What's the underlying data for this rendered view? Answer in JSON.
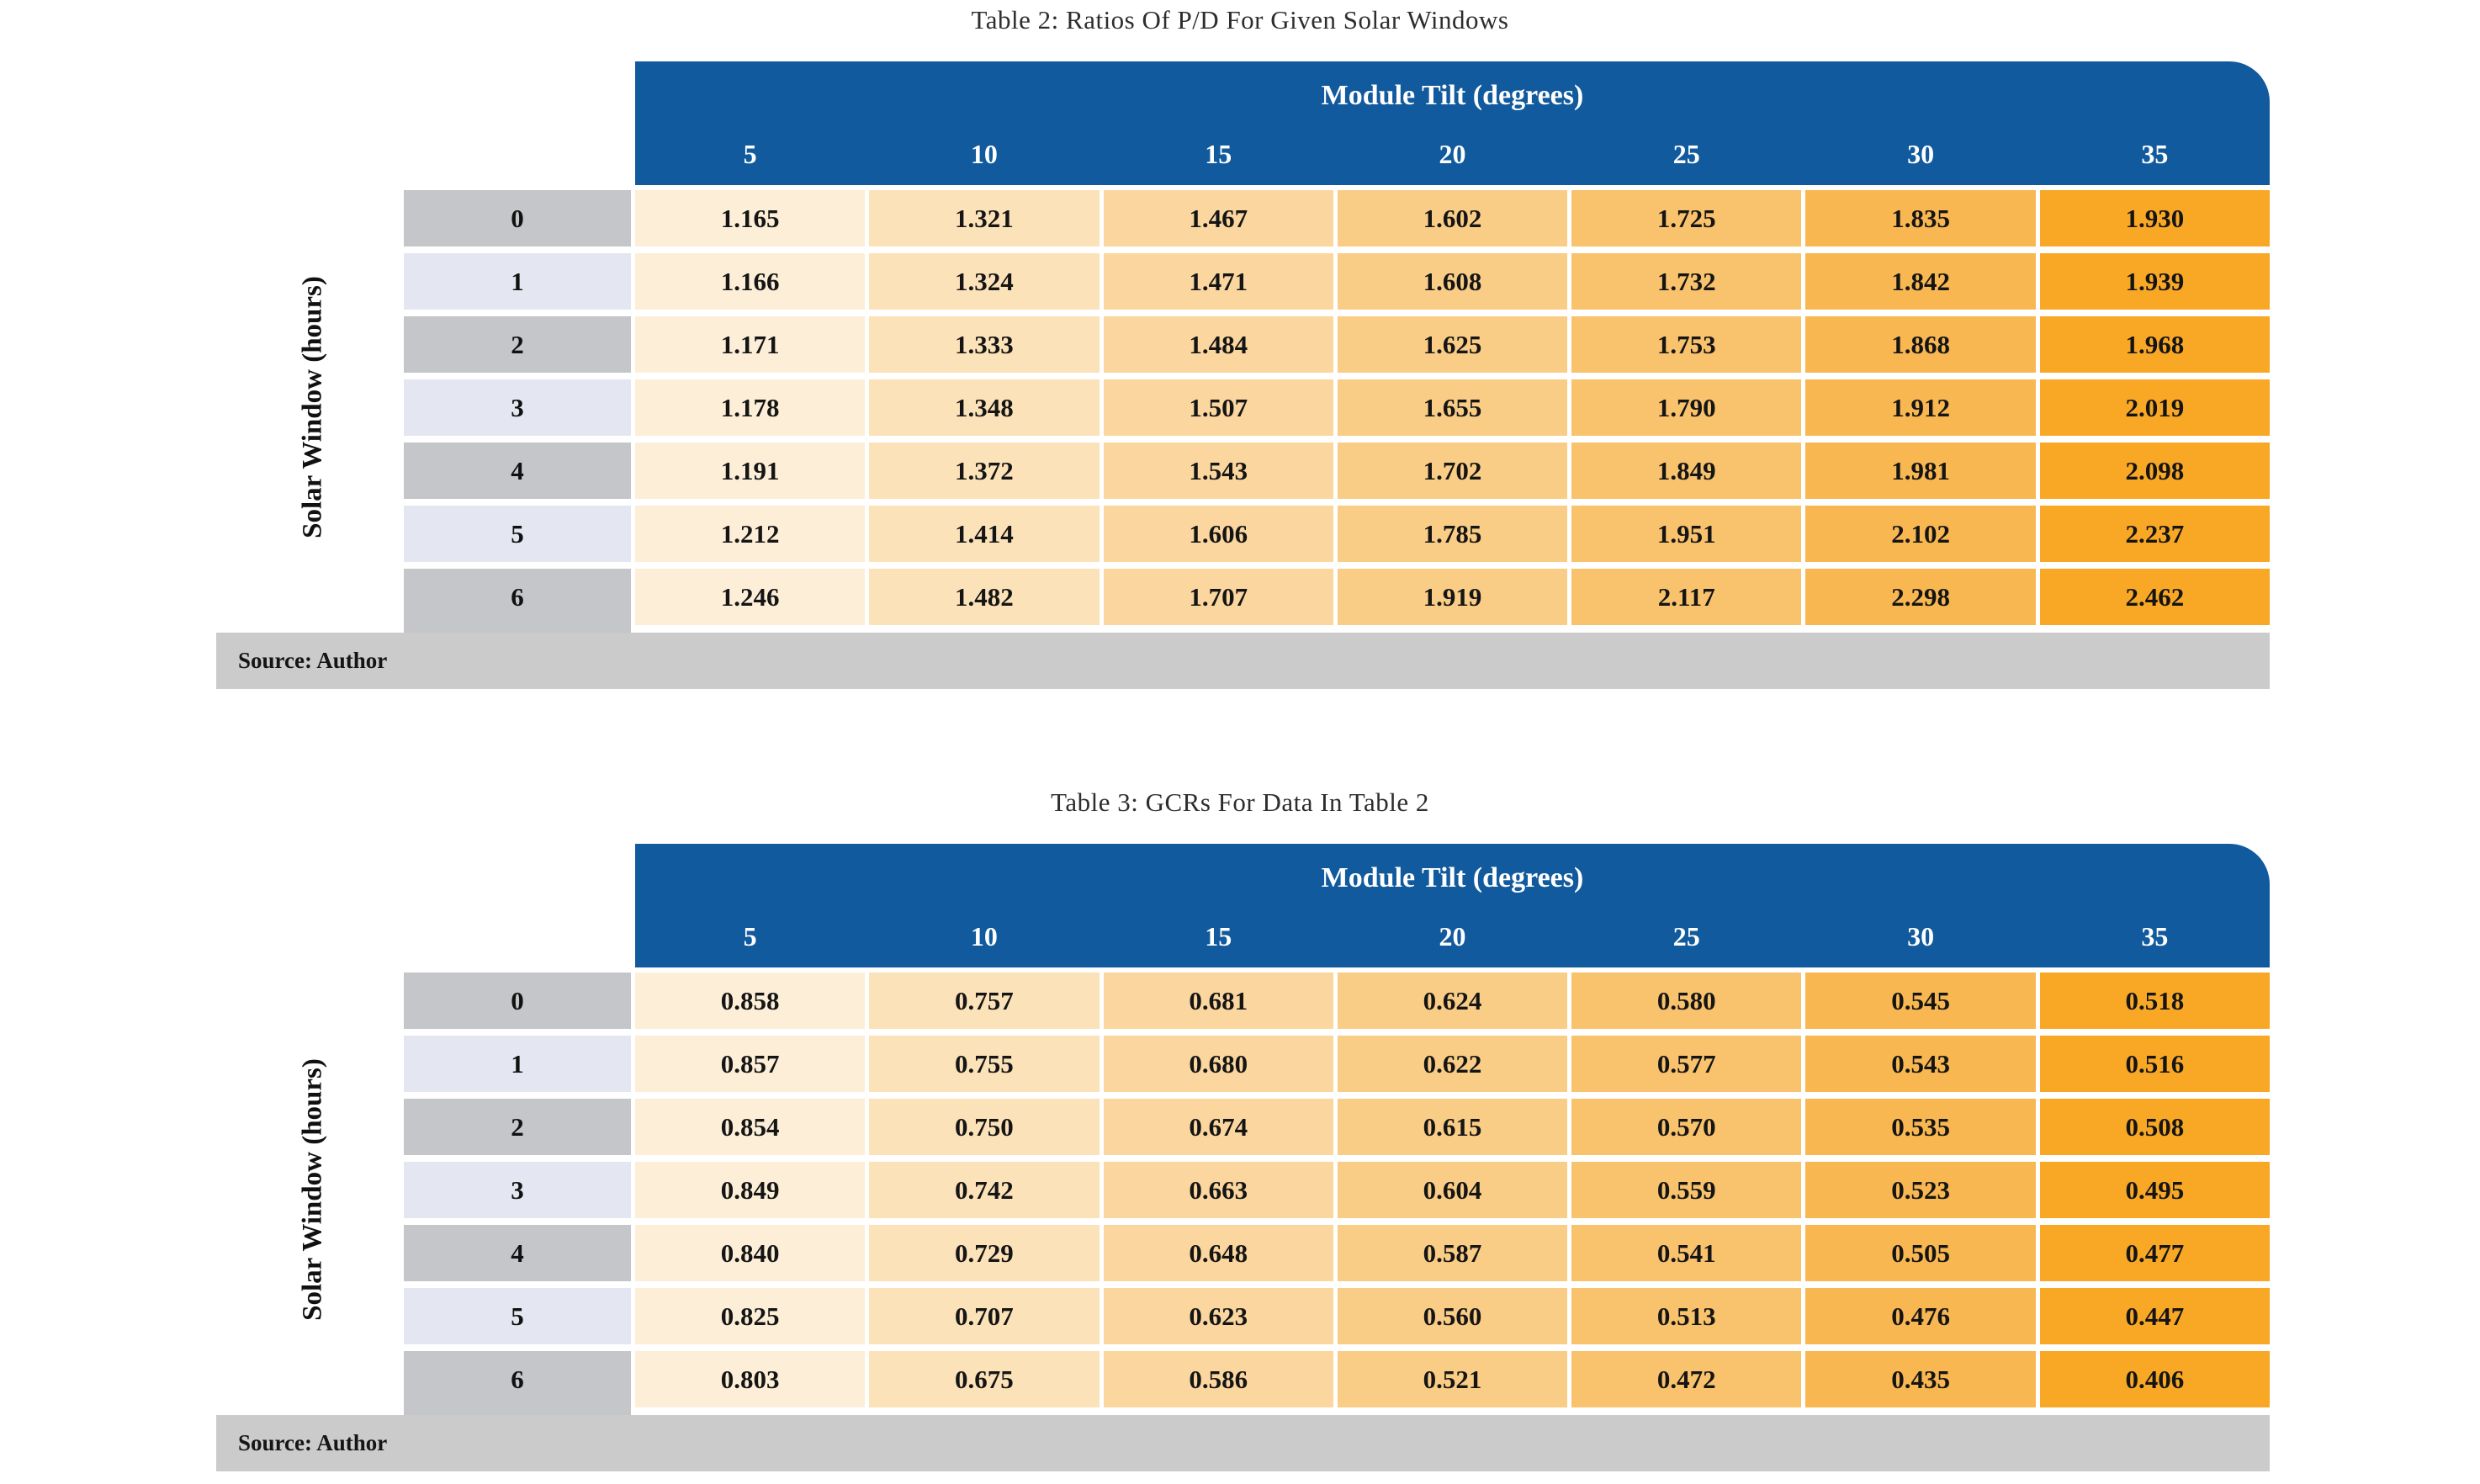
{
  "palette": {
    "header_blue": "#115a9d",
    "header_text_white": "#ffffff",
    "row_header_gray": "#c5c6ca",
    "row_header_lavender": "#e4e7f2",
    "source_bar_gray": "#cbcbcb",
    "column_shades": [
      "#fdefd7",
      "#fce2b9",
      "#fbd79f",
      "#facd86",
      "#f9c26c",
      "#f8b751",
      "#f9a826"
    ],
    "value_text": "#151515"
  },
  "tables": [
    {
      "title": "Table 2: Ratios Of P/D For Given Solar Windows",
      "col_group_label": "Module Tilt (degrees)",
      "row_group_label": "Solar Window (hours)",
      "columns": [
        "5",
        "10",
        "15",
        "20",
        "25",
        "30",
        "35"
      ],
      "rows": [
        {
          "label": "0",
          "values": [
            "1.165",
            "1.321",
            "1.467",
            "1.602",
            "1.725",
            "1.835",
            "1.930"
          ]
        },
        {
          "label": "1",
          "values": [
            "1.166",
            "1.324",
            "1.471",
            "1.608",
            "1.732",
            "1.842",
            "1.939"
          ]
        },
        {
          "label": "2",
          "values": [
            "1.171",
            "1.333",
            "1.484",
            "1.625",
            "1.753",
            "1.868",
            "1.968"
          ]
        },
        {
          "label": "3",
          "values": [
            "1.178",
            "1.348",
            "1.507",
            "1.655",
            "1.790",
            "1.912",
            "2.019"
          ]
        },
        {
          "label": "4",
          "values": [
            "1.191",
            "1.372",
            "1.543",
            "1.702",
            "1.849",
            "1.981",
            "2.098"
          ]
        },
        {
          "label": "5",
          "values": [
            "1.212",
            "1.414",
            "1.606",
            "1.785",
            "1.951",
            "2.102",
            "2.237"
          ]
        },
        {
          "label": "6",
          "values": [
            "1.246",
            "1.482",
            "1.707",
            "1.919",
            "2.117",
            "2.298",
            "2.462"
          ]
        }
      ],
      "source": "Source: Author"
    },
    {
      "title": "Table 3: GCRs For Data In Table 2",
      "col_group_label": "Module Tilt (degrees)",
      "row_group_label": "Solar Window (hours)",
      "columns": [
        "5",
        "10",
        "15",
        "20",
        "25",
        "30",
        "35"
      ],
      "rows": [
        {
          "label": "0",
          "values": [
            "0.858",
            "0.757",
            "0.681",
            "0.624",
            "0.580",
            "0.545",
            "0.518"
          ]
        },
        {
          "label": "1",
          "values": [
            "0.857",
            "0.755",
            "0.680",
            "0.622",
            "0.577",
            "0.543",
            "0.516"
          ]
        },
        {
          "label": "2",
          "values": [
            "0.854",
            "0.750",
            "0.674",
            "0.615",
            "0.570",
            "0.535",
            "0.508"
          ]
        },
        {
          "label": "3",
          "values": [
            "0.849",
            "0.742",
            "0.663",
            "0.604",
            "0.559",
            "0.523",
            "0.495"
          ]
        },
        {
          "label": "4",
          "values": [
            "0.840",
            "0.729",
            "0.648",
            "0.587",
            "0.541",
            "0.505",
            "0.477"
          ]
        },
        {
          "label": "5",
          "values": [
            "0.825",
            "0.707",
            "0.623",
            "0.560",
            "0.513",
            "0.476",
            "0.447"
          ]
        },
        {
          "label": "6",
          "values": [
            "0.803",
            "0.675",
            "0.586",
            "0.521",
            "0.472",
            "0.435",
            "0.406"
          ]
        }
      ],
      "source": "Source: Author"
    }
  ]
}
